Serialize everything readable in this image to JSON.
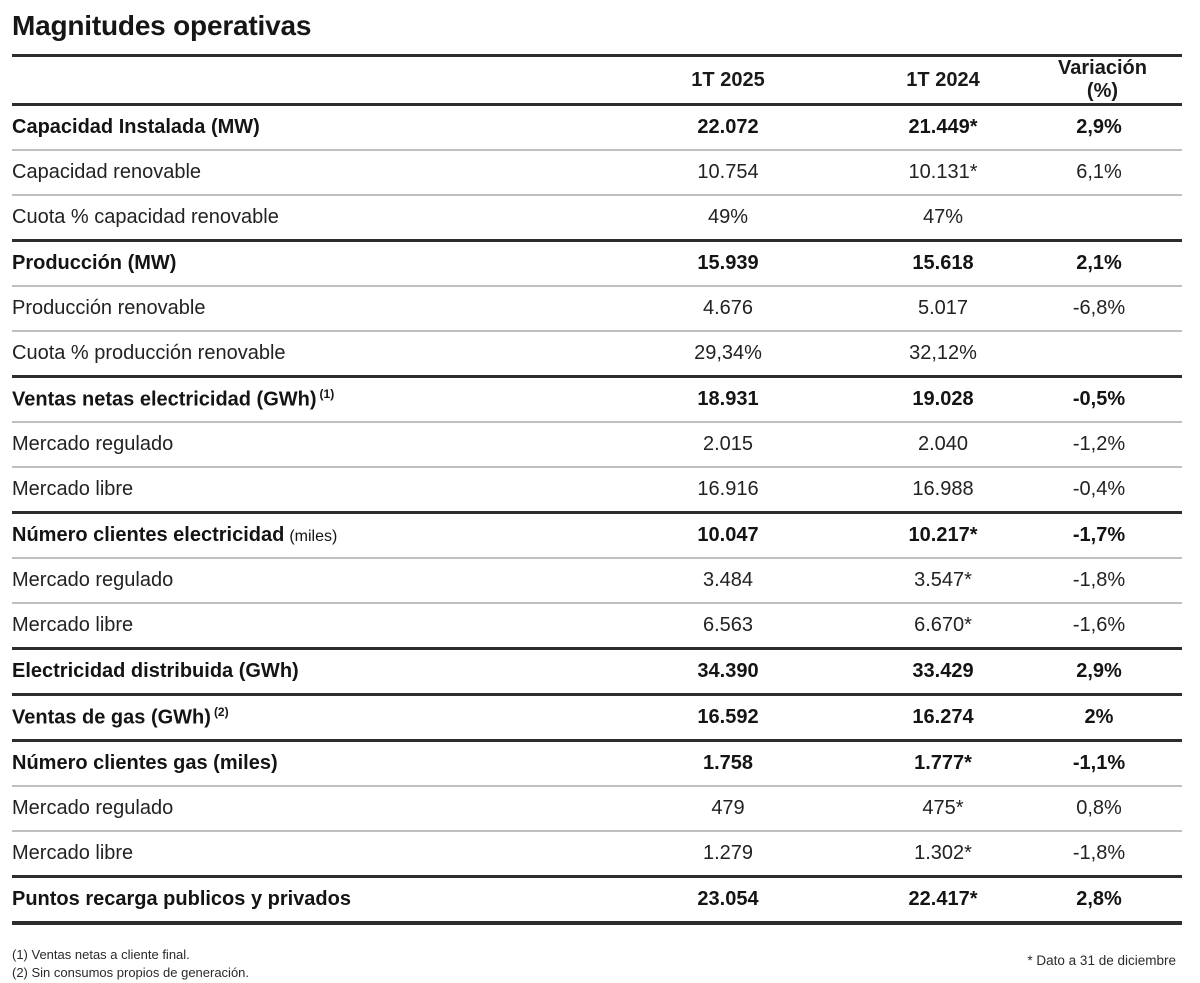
{
  "page": {
    "title": "Magnitudes operativas"
  },
  "colors": {
    "rule_dark": "#2d2d2d",
    "rule_light": "#c0c0c0",
    "text": "#1c1c1c",
    "background": "#ffffff"
  },
  "table": {
    "columns": [
      "1T 2025",
      "1T 2024",
      "Variación (%)"
    ],
    "rows": [
      {
        "label": "Capacidad Instalada (MW)",
        "bold": true,
        "q1_2025": "22.072",
        "q1_2024": "21.449*",
        "variation": "2,9%"
      },
      {
        "label": "Capacidad renovable",
        "bold": false,
        "q1_2025": "10.754",
        "q1_2024": "10.131*",
        "variation": "6,1%"
      },
      {
        "label": "Cuota % capacidad renovable",
        "bold": false,
        "q1_2025": "49%",
        "q1_2024": "47%",
        "variation": ""
      },
      {
        "label": "Producción (MW)",
        "bold": true,
        "q1_2025": "15.939",
        "q1_2024": "15.618",
        "variation": "2,1%"
      },
      {
        "label": "Producción renovable",
        "bold": false,
        "q1_2025": "4.676",
        "q1_2024": "5.017",
        "variation": "-6,8%"
      },
      {
        "label": "Cuota % producción renovable",
        "bold": false,
        "q1_2025": "29,34%",
        "q1_2024": "32,12%",
        "variation": ""
      },
      {
        "label": "Ventas netas electricidad (GWh)",
        "label_sup": "(1)",
        "bold": true,
        "q1_2025": "18.931",
        "q1_2024": "19.028",
        "variation": "-0,5%"
      },
      {
        "label": "Mercado regulado",
        "bold": false,
        "q1_2025": "2.015",
        "q1_2024": "2.040",
        "variation": "-1,2%"
      },
      {
        "label": "Mercado libre",
        "bold": false,
        "q1_2025": "16.916",
        "q1_2024": "16.988",
        "variation": "-0,4%"
      },
      {
        "label": "Número clientes electricidad",
        "label_note": "(miles)",
        "bold": true,
        "q1_2025": "10.047",
        "q1_2024": "10.217*",
        "variation": "-1,7%"
      },
      {
        "label": "Mercado regulado",
        "bold": false,
        "q1_2025": "3.484",
        "q1_2024": "3.547*",
        "variation": "-1,8%"
      },
      {
        "label": "Mercado libre",
        "bold": false,
        "q1_2025": "6.563",
        "q1_2024": "6.670*",
        "variation": "-1,6%"
      },
      {
        "label": "Electricidad distribuida (GWh)",
        "bold": true,
        "q1_2025": "34.390",
        "q1_2024": "33.429",
        "variation": "2,9%"
      },
      {
        "label": "Ventas de gas (GWh)",
        "label_sup": "(2)",
        "bold": true,
        "q1_2025": "16.592",
        "q1_2024": "16.274",
        "variation": "2%"
      },
      {
        "label": "Número clientes gas (miles)",
        "bold": true,
        "q1_2025": "1.758",
        "q1_2024": "1.777*",
        "variation": "-1,1%"
      },
      {
        "label": "Mercado regulado",
        "bold": false,
        "q1_2025": "479",
        "q1_2024": "475*",
        "variation": "0,8%"
      },
      {
        "label": "Mercado libre",
        "bold": false,
        "q1_2025": "1.279",
        "q1_2024": "1.302*",
        "variation": "-1,8%"
      },
      {
        "label": "Puntos recarga publicos y privados",
        "bold": true,
        "q1_2025": "23.054",
        "q1_2024": "22.417*",
        "variation": "2,8%"
      }
    ]
  },
  "footnotes": {
    "left": [
      "(1)  Ventas netas a cliente final.",
      "(2)  Sin consumos propios de generación."
    ],
    "right": "* Dato a 31 de diciembre"
  }
}
